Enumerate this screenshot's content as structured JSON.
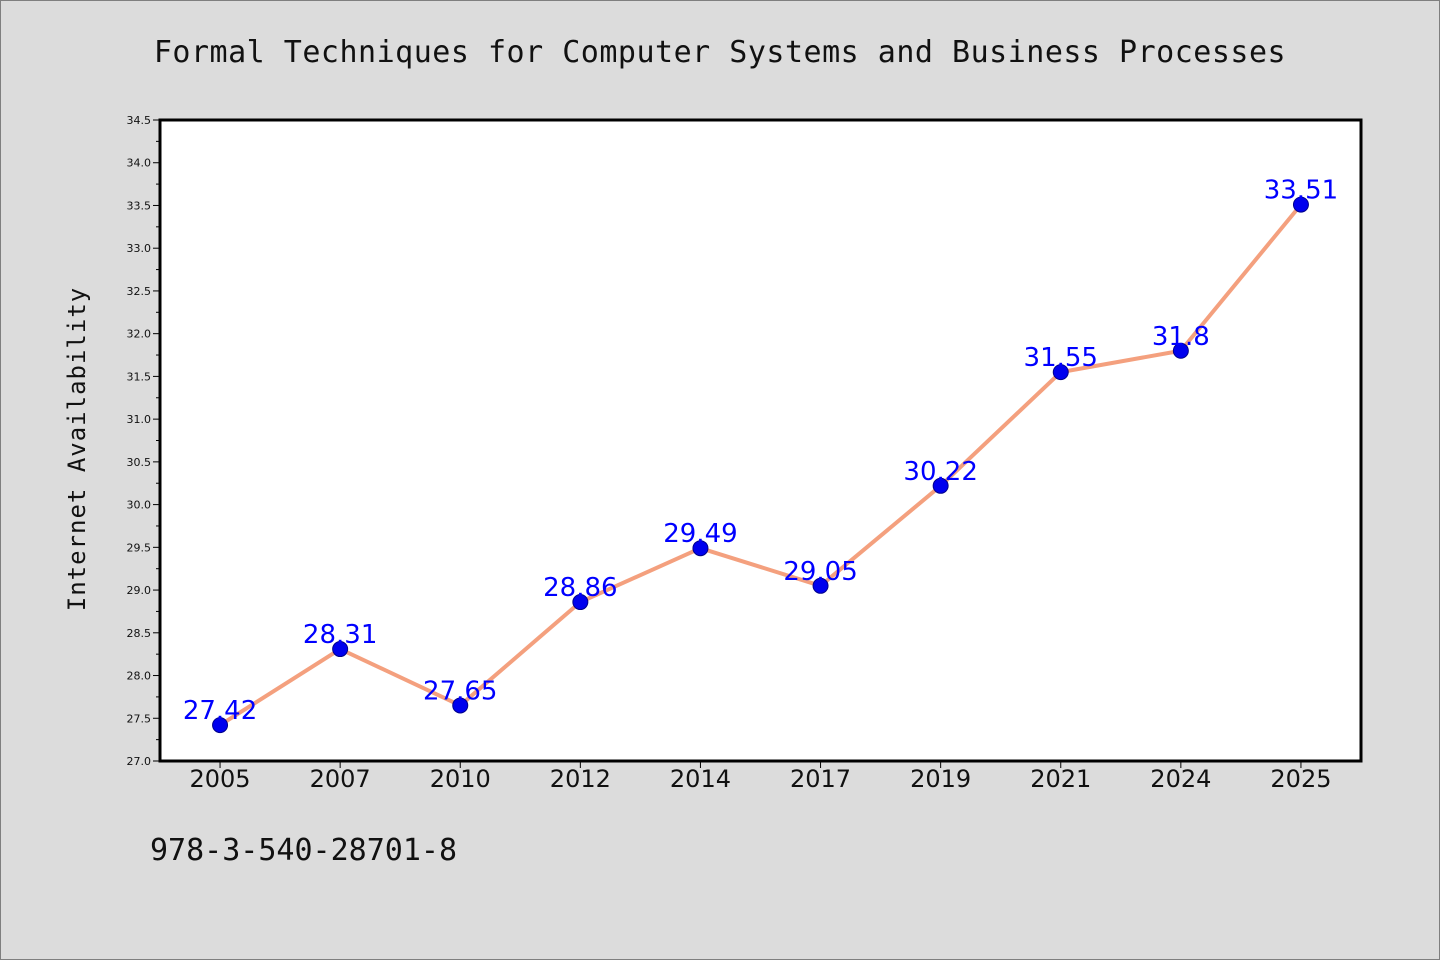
{
  "chart_data": {
    "type": "line",
    "title": "Formal Techniques for Computer Systems and Business Processes",
    "xlabel": "",
    "ylabel": "Internet Availability",
    "categories": [
      "2005",
      "2007",
      "2010",
      "2012",
      "2014",
      "2017",
      "2019",
      "2021",
      "2024",
      "2025"
    ],
    "series": [
      {
        "values": [
          27.42,
          28.31,
          27.65,
          28.86,
          29.49,
          29.05,
          30.22,
          31.55,
          31.8,
          33.51
        ],
        "labels": [
          "27.42",
          "28.31",
          "27.65",
          "28.86",
          "29.49",
          "29.05",
          "30.22",
          "31.55",
          "31.8",
          "33.51"
        ]
      }
    ],
    "ylim": [
      27.0,
      34.5
    ],
    "yticks": [
      "27.0",
      "27.5",
      "28.0",
      "28.5",
      "29.0",
      "29.5",
      "30.0",
      "30.5",
      "31.0",
      "31.5",
      "32.0",
      "32.5",
      "33.0",
      "33.5",
      "34.0",
      "34.5"
    ],
    "grid": false,
    "colors": {
      "line": "#f4a07e",
      "marker_fill": "#0000ee",
      "marker_edge": "#00008b",
      "data_label": "#0000ff",
      "background": "#dcdcdc",
      "plot_background": "#ffffff"
    }
  },
  "footnote": "978-3-540-28701-8"
}
